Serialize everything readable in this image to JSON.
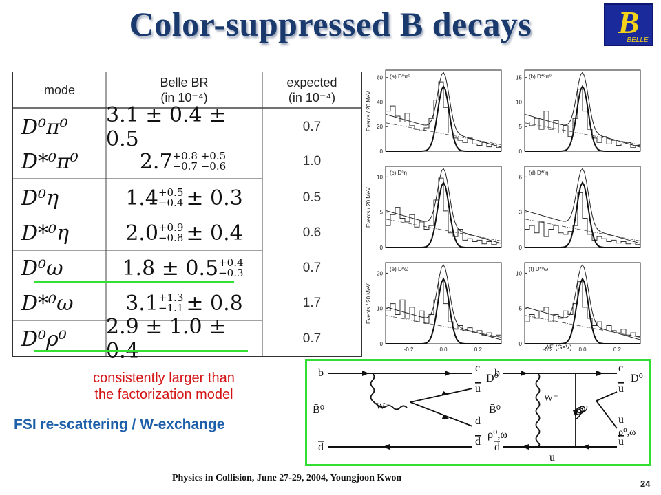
{
  "slide": {
    "title": "Color-suppressed B decays",
    "logo_letter": "B",
    "logo_text": "BELLE",
    "footer": "Physics in Collision,   June 27-29, 2004,    Youngjoon Kwon",
    "page_number": "24"
  },
  "table": {
    "headers": {
      "mode": "mode",
      "belle_br_line1": "Belle  BR",
      "belle_br_line2": "(in  10⁻⁴)",
      "expected_line1": "expected",
      "expected_line2": "(in  10⁻⁴)"
    },
    "rows": [
      {
        "mode": "D⁰π⁰",
        "br_main": "3.1 ± 0.4 ± 0.5",
        "br_sup": "",
        "br_sub": "",
        "br_tail": "",
        "expected": "0.7"
      },
      {
        "mode": "D*⁰π⁰",
        "br_main": "2.7",
        "br_sup": "+0.8 +0.5",
        "br_sub": "−0.7 −0.6",
        "br_tail": "",
        "expected": "1.0"
      },
      {
        "mode": "D⁰η",
        "br_main": "1.4",
        "br_sup": "+0.5",
        "br_sub": "−0.4",
        "br_tail": "± 0.3",
        "expected": "0.5"
      },
      {
        "mode": "D*⁰η",
        "br_main": "2.0",
        "br_sup": "+0.9",
        "br_sub": "−0.8",
        "br_tail": "± 0.4",
        "expected": "0.6"
      },
      {
        "mode": "D⁰ω",
        "br_main": "1.8 ± 0.5",
        "br_sup": "+0.4",
        "br_sub": "−0.3",
        "br_tail": "",
        "expected": "0.7"
      },
      {
        "mode": "D*⁰ω",
        "br_main": "3.1",
        "br_sup": "+1.3",
        "br_sub": "−1.1",
        "br_tail": "± 0.8",
        "expected": "1.7"
      },
      {
        "mode": "D⁰ρ⁰",
        "br_main": "2.9 ± 1.0 ± 0.4",
        "br_sup": "",
        "br_sub": "",
        "br_tail": "",
        "expected": "0.7"
      }
    ]
  },
  "annotations": {
    "consistently_line1": "consistently larger than",
    "consistently_line2": "the factorization model",
    "fsi": "FSI re-scattering / W-exchange"
  },
  "plots": {
    "ylabel": "Events / 20 MeV",
    "xlabel": "ΔE (GeV)",
    "xticks": [
      "-0.2",
      "0.0",
      "0.2"
    ],
    "panels": [
      {
        "label": "(a)  D⁰π⁰",
        "yticks": [
          "0",
          "20",
          "40",
          "60"
        ]
      },
      {
        "label": "(b)  D*⁰π⁰",
        "yticks": [
          "0",
          "5",
          "10",
          "15"
        ]
      },
      {
        "label": "(c)  D⁰η",
        "yticks": [
          "0",
          "5",
          "10"
        ]
      },
      {
        "label": "(d)  D*⁰η",
        "yticks": [
          "0",
          "3",
          "6"
        ]
      },
      {
        "label": "(e)  D⁰ω",
        "yticks": [
          "0",
          "10",
          "20"
        ]
      },
      {
        "label": "(f)  D*⁰ω",
        "yticks": [
          "0",
          "5",
          "10"
        ]
      }
    ]
  },
  "diagram": {
    "left": {
      "b": "b",
      "c": "c",
      "ubar": "u",
      "d": "d",
      "dbar": "d",
      "Bbar": "B̄⁰",
      "W": "W⁻",
      "D": "D⁰",
      "rho": "ρ⁰,ω"
    },
    "right": {
      "b": "b",
      "c": "c",
      "ubar": "u",
      "u": "u",
      "ubar2": "u",
      "dbar": "d",
      "ubar_bottom": "ū",
      "Bbar": "B̄⁰",
      "W": "W⁻",
      "g": "g",
      "D": "D⁰",
      "rho": "ρ⁰,ω"
    }
  },
  "colors": {
    "title": "#1a3a6e",
    "highlight_green": "#33e033",
    "note_red": "#d41414",
    "fsi_blue": "#1d5fa8"
  }
}
